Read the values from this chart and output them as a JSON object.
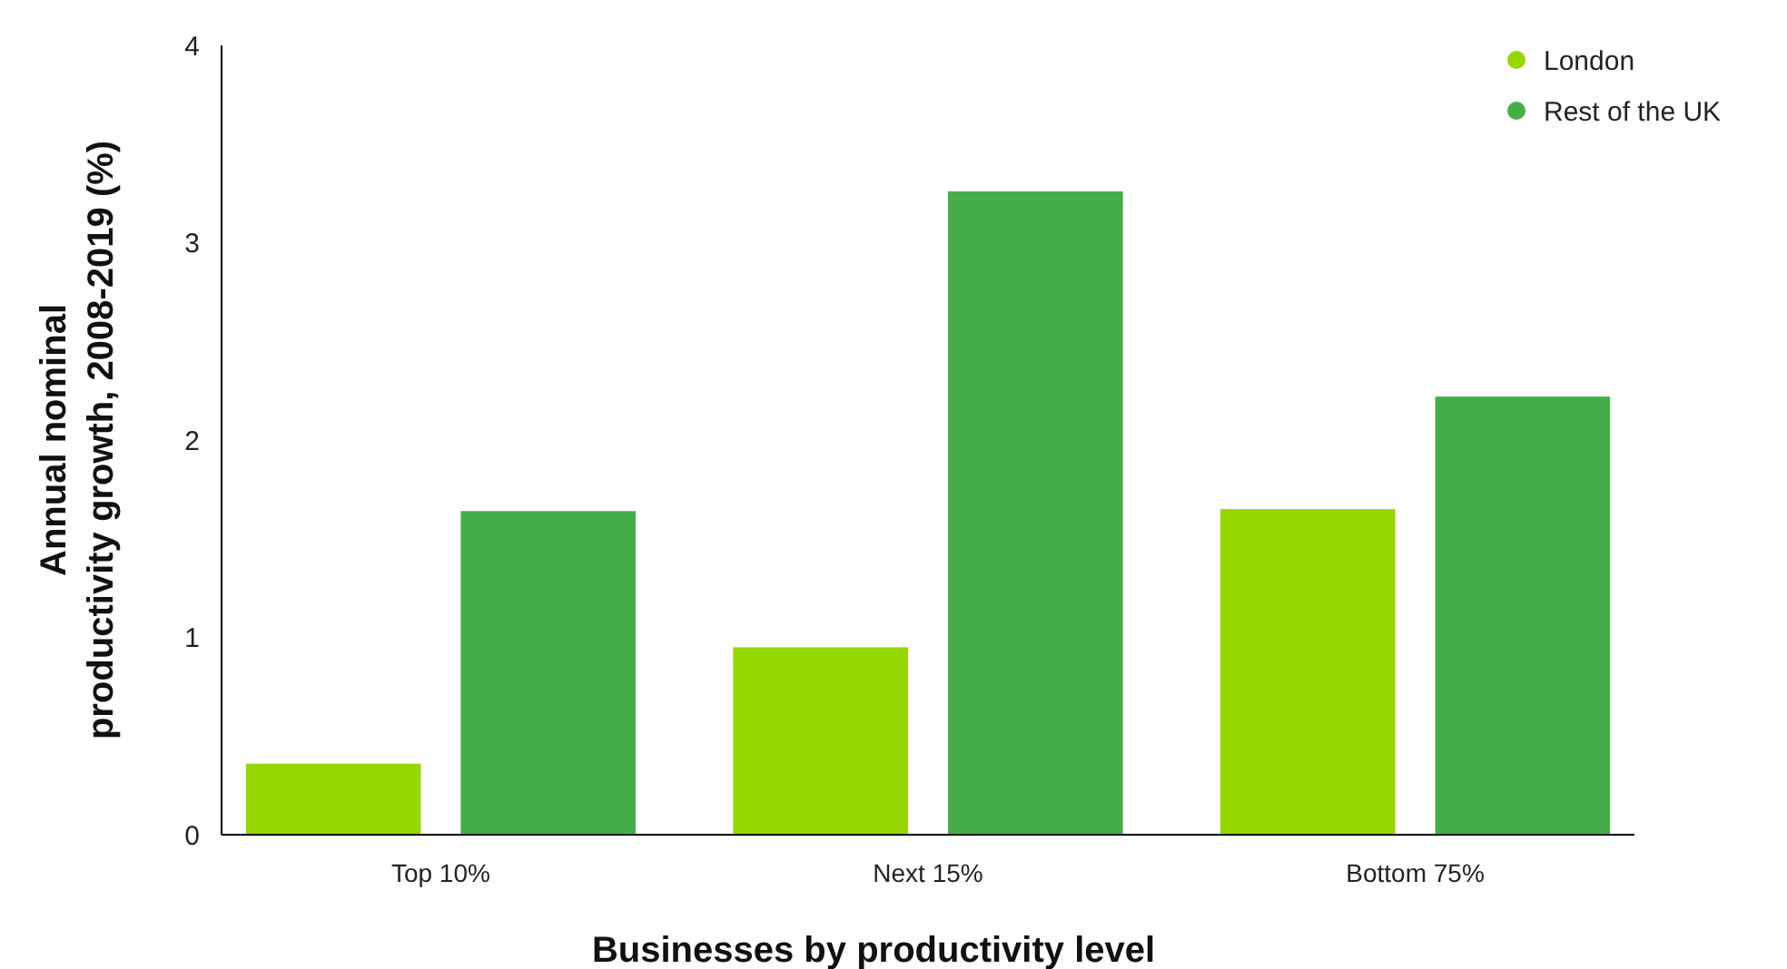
{
  "chart_data": {
    "type": "bar",
    "xlabel": "Businesses by productivity level",
    "ylabel": "Annual nominal productivity growth, 2008-2019 (%)",
    "categories": [
      "Top 10%",
      "Next 15%",
      "Bottom 75%"
    ],
    "series": [
      {
        "name": "London",
        "color": "#97d700",
        "values": [
          0.36,
          0.95,
          1.65
        ]
      },
      {
        "name": "Rest of the UK",
        "color": "#46ad4b",
        "values": [
          1.64,
          3.26,
          2.22
        ]
      }
    ],
    "ylim": [
      0,
      4
    ],
    "yticks": [
      0,
      1,
      2,
      3,
      4
    ],
    "grid": false,
    "legend": "top right"
  }
}
